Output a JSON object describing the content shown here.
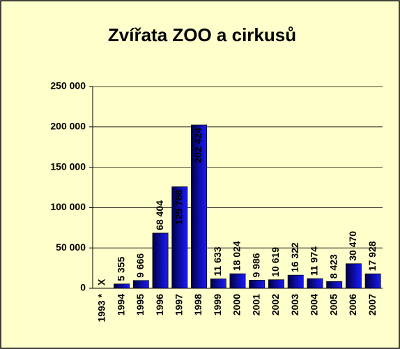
{
  "chart_data": {
    "type": "bar",
    "title": "Zvířata ZOO a cirkusů",
    "categories": [
      "1993 *",
      "1994",
      "1995",
      "1996",
      "1997",
      "1998",
      "1999",
      "2000",
      "2001",
      "2002",
      "2003",
      "2004",
      "2005",
      "2006",
      "2007"
    ],
    "values": [
      null,
      5355,
      9666,
      68404,
      125786,
      202424,
      11633,
      18024,
      9986,
      10619,
      16322,
      11974,
      8423,
      30470,
      17928
    ],
    "value_labels": [
      "X",
      "5 355",
      "9 666",
      "68 404",
      "125 786",
      "202 424",
      "11 633",
      "18 024",
      "9 986",
      "10 619",
      "16 322",
      "11 974",
      "8 423",
      "30 470",
      "17 928"
    ],
    "color": "#1a1aff",
    "ylim": [
      0,
      250000
    ],
    "yticks": [
      {
        "value": 0,
        "label": "0"
      },
      {
        "value": 50000,
        "label": "50 000"
      },
      {
        "value": 100000,
        "label": "100 000"
      },
      {
        "value": 150000,
        "label": "150 000"
      },
      {
        "value": 200000,
        "label": "200 000"
      },
      {
        "value": 250000,
        "label": "250 000"
      }
    ],
    "grid": true
  }
}
